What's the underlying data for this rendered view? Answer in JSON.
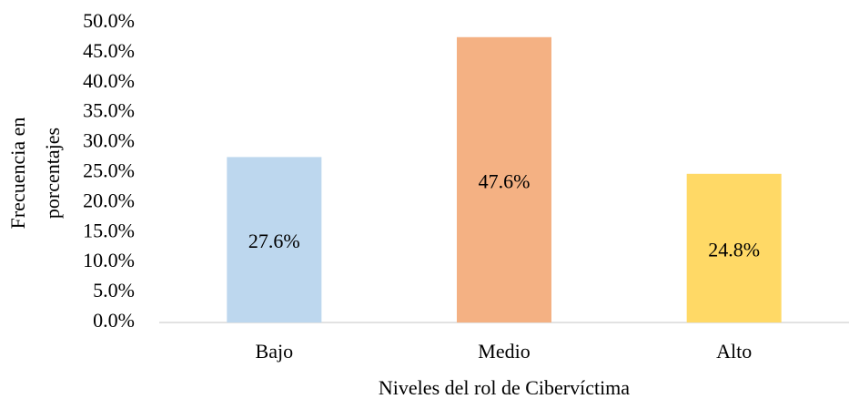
{
  "chart_data": {
    "type": "bar",
    "categories": [
      "Bajo",
      "Medio",
      "Alto"
    ],
    "values": [
      27.6,
      47.6,
      24.8
    ],
    "value_labels": [
      "27.6%",
      "47.6%",
      "24.8%"
    ],
    "colors": [
      "#bdd7ee",
      "#f4b183",
      "#ffd966"
    ],
    "ylim": [
      0,
      50
    ],
    "yticks": [
      {
        "value": 0,
        "label": "0.0%"
      },
      {
        "value": 5,
        "label": "5.0%"
      },
      {
        "value": 10,
        "label": "10.0%"
      },
      {
        "value": 15,
        "label": "15.0%"
      },
      {
        "value": 20,
        "label": "20.0%"
      },
      {
        "value": 25,
        "label": "25.0%"
      },
      {
        "value": 30,
        "label": "30.0%"
      },
      {
        "value": 35,
        "label": "35.0%"
      },
      {
        "value": 40,
        "label": "40.0%"
      },
      {
        "value": 45,
        "label": "45.0%"
      },
      {
        "value": 50,
        "label": "50.0%"
      }
    ],
    "ylabel": [
      "Frecuencia en",
      "porcentajes"
    ],
    "xlabel": "Niveles del rol de Cibervíctima",
    "grid": false
  }
}
